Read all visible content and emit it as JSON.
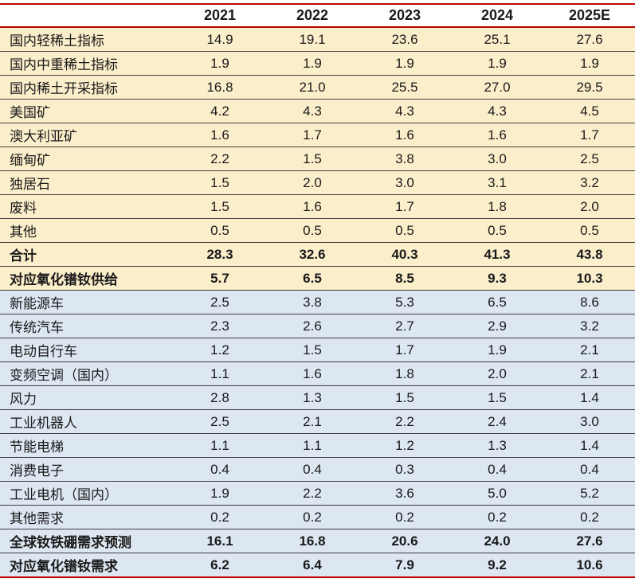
{
  "colors": {
    "accent_red": "#c00000",
    "supply_section_bg": "#fbeecb",
    "demand_section_bg": "#dce7f2",
    "separator": "#3f3f3f",
    "text": "#1a1a1a"
  },
  "chart_data": {
    "type": "table",
    "columns": [
      "",
      "2021",
      "2022",
      "2023",
      "2024",
      "2025E"
    ],
    "rows": [
      {
        "label": "国内轻稀土指标",
        "values": [
          "14.9",
          "19.1",
          "23.6",
          "25.1",
          "27.6"
        ],
        "section": "supply",
        "bold": false
      },
      {
        "label": "国内中重稀土指标",
        "values": [
          "1.9",
          "1.9",
          "1.9",
          "1.9",
          "1.9"
        ],
        "section": "supply",
        "bold": false
      },
      {
        "label": "国内稀土开采指标",
        "values": [
          "16.8",
          "21.0",
          "25.5",
          "27.0",
          "29.5"
        ],
        "section": "supply",
        "bold": false
      },
      {
        "label": "美国矿",
        "values": [
          "4.2",
          "4.3",
          "4.3",
          "4.3",
          "4.5"
        ],
        "section": "supply",
        "bold": false
      },
      {
        "label": "澳大利亚矿",
        "values": [
          "1.6",
          "1.7",
          "1.6",
          "1.6",
          "1.7"
        ],
        "section": "supply",
        "bold": false
      },
      {
        "label": "缅甸矿",
        "values": [
          "2.2",
          "1.5",
          "3.8",
          "3.0",
          "2.5"
        ],
        "section": "supply",
        "bold": false
      },
      {
        "label": "独居石",
        "values": [
          "1.5",
          "2.0",
          "3.0",
          "3.1",
          "3.2"
        ],
        "section": "supply",
        "bold": false
      },
      {
        "label": "废料",
        "values": [
          "1.5",
          "1.6",
          "1.7",
          "1.8",
          "2.0"
        ],
        "section": "supply",
        "bold": false
      },
      {
        "label": "其他",
        "values": [
          "0.5",
          "0.5",
          "0.5",
          "0.5",
          "0.5"
        ],
        "section": "supply",
        "bold": false
      },
      {
        "label": "合计",
        "values": [
          "28.3",
          "32.6",
          "40.3",
          "41.3",
          "43.8"
        ],
        "section": "supply",
        "bold": true
      },
      {
        "label": "对应氧化镨钕供给",
        "values": [
          "5.7",
          "6.5",
          "8.5",
          "9.3",
          "10.3"
        ],
        "section": "supply",
        "bold": true
      },
      {
        "label": "新能源车",
        "values": [
          "2.5",
          "3.8",
          "5.3",
          "6.5",
          "8.6"
        ],
        "section": "demand",
        "bold": false
      },
      {
        "label": "传统汽车",
        "values": [
          "2.3",
          "2.6",
          "2.7",
          "2.9",
          "3.2"
        ],
        "section": "demand",
        "bold": false
      },
      {
        "label": "电动自行车",
        "values": [
          "1.2",
          "1.5",
          "1.7",
          "1.9",
          "2.1"
        ],
        "section": "demand",
        "bold": false
      },
      {
        "label": "变频空调（国内）",
        "values": [
          "1.1",
          "1.6",
          "1.8",
          "2.0",
          "2.1"
        ],
        "section": "demand",
        "bold": false
      },
      {
        "label": "风力",
        "values": [
          "2.8",
          "1.3",
          "1.5",
          "1.5",
          "1.4"
        ],
        "section": "demand",
        "bold": false
      },
      {
        "label": "工业机器人",
        "values": [
          "2.5",
          "2.1",
          "2.2",
          "2.4",
          "3.0"
        ],
        "section": "demand",
        "bold": false
      },
      {
        "label": "节能电梯",
        "values": [
          "1.1",
          "1.1",
          "1.2",
          "1.3",
          "1.4"
        ],
        "section": "demand",
        "bold": false
      },
      {
        "label": "消费电子",
        "values": [
          "0.4",
          "0.4",
          "0.3",
          "0.4",
          "0.4"
        ],
        "section": "demand",
        "bold": false
      },
      {
        "label": "工业电机（国内）",
        "values": [
          "1.9",
          "2.2",
          "3.6",
          "5.0",
          "5.2"
        ],
        "section": "demand",
        "bold": false
      },
      {
        "label": "其他需求",
        "values": [
          "0.2",
          "0.2",
          "0.2",
          "0.2",
          "0.2"
        ],
        "section": "demand",
        "bold": false
      },
      {
        "label": "全球钕铁硼需求预测",
        "values": [
          "16.1",
          "16.8",
          "20.6",
          "24.0",
          "27.6"
        ],
        "section": "demand",
        "bold": true
      },
      {
        "label": "对应氧化镨钕需求",
        "values": [
          "6.2",
          "6.4",
          "7.9",
          "9.2",
          "10.6"
        ],
        "section": "demand",
        "bold": true
      }
    ]
  }
}
